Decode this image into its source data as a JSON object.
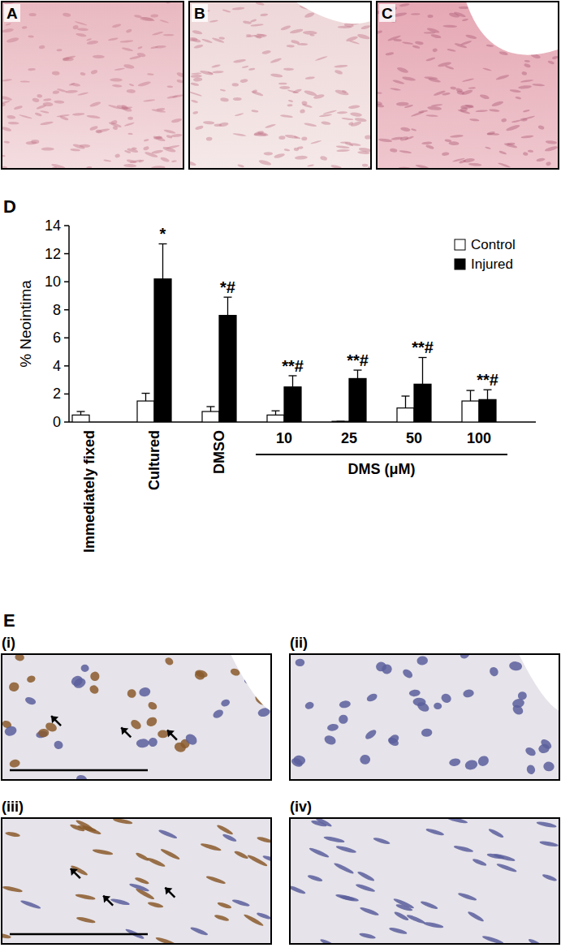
{
  "chart_data": {
    "type": "bar",
    "categories": [
      "Immediately fixed",
      "Cultured",
      "DMSO",
      "10",
      "25",
      "50",
      "100"
    ],
    "category_group": {
      "label": "DMS (μM)",
      "categories": [
        "10",
        "25",
        "50",
        "100"
      ]
    },
    "y_label": "% Neointima",
    "series": [
      {
        "name": "Control",
        "color": "#ffffff",
        "values": [
          0.5,
          1.5,
          0.75,
          0.5,
          0.05,
          1.0,
          1.5
        ],
        "errors": [
          0.25,
          0.55,
          0.35,
          0.3,
          0.0,
          0.85,
          0.75
        ]
      },
      {
        "name": "Injured",
        "color": "#000000",
        "values": [
          null,
          10.2,
          7.6,
          2.5,
          3.1,
          2.7,
          1.6
        ],
        "errors": [
          null,
          2.5,
          1.3,
          0.8,
          0.6,
          1.9,
          0.7
        ],
        "annotations": [
          null,
          "*",
          "*#",
          "**#",
          "**#",
          "**#",
          "**#"
        ]
      }
    ],
    "ylim": [
      0,
      14
    ],
    "yticks": [
      0,
      2,
      4,
      6,
      8,
      10,
      12,
      14
    ],
    "grid": false,
    "legend": "top-right"
  },
  "panels": {
    "top": [
      "A",
      "B",
      "C"
    ],
    "chart_label": "D",
    "bottom_label": "E",
    "bottom": [
      "(i)",
      "(ii)",
      "(iii)",
      "(iv)"
    ]
  }
}
